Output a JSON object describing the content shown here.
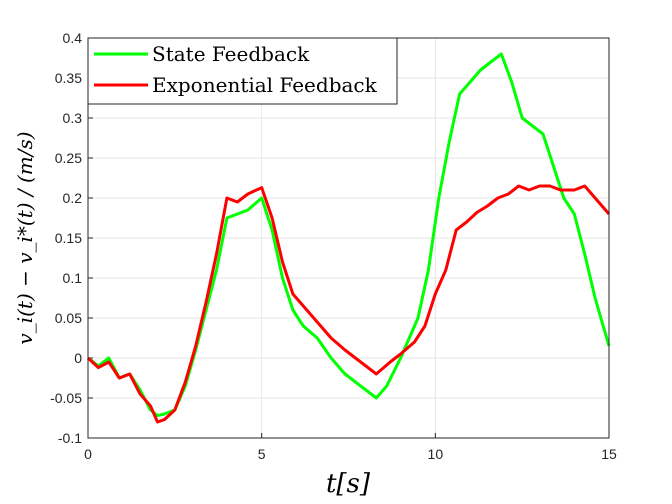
{
  "chart_data": {
    "type": "line",
    "xlabel": "t[s]",
    "ylabel": "v_i(t) − v_i*(t) / (m/s)",
    "xlim": [
      0,
      15
    ],
    "ylim": [
      -0.1,
      0.4
    ],
    "xticks": [
      "0",
      "5",
      "10",
      "15"
    ],
    "yticks": [
      "-0.1",
      "-0.05",
      "0",
      "0.05",
      "0.1",
      "0.15",
      "0.2",
      "0.25",
      "0.3",
      "0.35",
      "0.4"
    ],
    "grid": true,
    "legend_position": "top-left",
    "series": [
      {
        "name": "State Feedback",
        "color": "#00ff00",
        "points": [
          [
            0,
            0
          ],
          [
            0.3,
            -0.01
          ],
          [
            0.6,
            0.0
          ],
          [
            0.9,
            -0.025
          ],
          [
            1.2,
            -0.02
          ],
          [
            1.5,
            -0.04
          ],
          [
            1.8,
            -0.065
          ],
          [
            2.0,
            -0.072
          ],
          [
            2.2,
            -0.07
          ],
          [
            2.5,
            -0.065
          ],
          [
            2.8,
            -0.035
          ],
          [
            3.1,
            0.01
          ],
          [
            3.4,
            0.06
          ],
          [
            3.7,
            0.11
          ],
          [
            4.0,
            0.175
          ],
          [
            4.3,
            0.18
          ],
          [
            4.6,
            0.185
          ],
          [
            5.0,
            0.2
          ],
          [
            5.3,
            0.16
          ],
          [
            5.6,
            0.1
          ],
          [
            5.9,
            0.06
          ],
          [
            6.2,
            0.04
          ],
          [
            6.6,
            0.025
          ],
          [
            7.0,
            0.0
          ],
          [
            7.4,
            -0.02
          ],
          [
            7.7,
            -0.03
          ],
          [
            8.0,
            -0.04
          ],
          [
            8.3,
            -0.05
          ],
          [
            8.6,
            -0.035
          ],
          [
            9.0,
            0.0
          ],
          [
            9.5,
            0.05
          ],
          [
            9.8,
            0.11
          ],
          [
            10.1,
            0.2
          ],
          [
            10.4,
            0.27
          ],
          [
            10.7,
            0.33
          ],
          [
            11.0,
            0.345
          ],
          [
            11.3,
            0.36
          ],
          [
            11.6,
            0.37
          ],
          [
            11.9,
            0.38
          ],
          [
            12.2,
            0.345
          ],
          [
            12.5,
            0.3
          ],
          [
            12.8,
            0.29
          ],
          [
            13.1,
            0.28
          ],
          [
            13.4,
            0.24
          ],
          [
            13.7,
            0.2
          ],
          [
            14.0,
            0.18
          ],
          [
            14.3,
            0.13
          ],
          [
            14.6,
            0.075
          ],
          [
            15.0,
            0.015
          ]
        ]
      },
      {
        "name": "Exponential Feedback",
        "color": "#ff0000",
        "points": [
          [
            0,
            0
          ],
          [
            0.3,
            -0.012
          ],
          [
            0.6,
            -0.005
          ],
          [
            0.9,
            -0.025
          ],
          [
            1.2,
            -0.02
          ],
          [
            1.5,
            -0.045
          ],
          [
            1.8,
            -0.06
          ],
          [
            2.0,
            -0.08
          ],
          [
            2.2,
            -0.077
          ],
          [
            2.5,
            -0.065
          ],
          [
            2.8,
            -0.03
          ],
          [
            3.1,
            0.015
          ],
          [
            3.4,
            0.07
          ],
          [
            3.7,
            0.13
          ],
          [
            4.0,
            0.2
          ],
          [
            4.3,
            0.195
          ],
          [
            4.6,
            0.205
          ],
          [
            5.0,
            0.213
          ],
          [
            5.3,
            0.175
          ],
          [
            5.6,
            0.12
          ],
          [
            5.9,
            0.08
          ],
          [
            6.2,
            0.065
          ],
          [
            6.6,
            0.045
          ],
          [
            7.0,
            0.025
          ],
          [
            7.4,
            0.01
          ],
          [
            7.7,
            0.0
          ],
          [
            8.0,
            -0.01
          ],
          [
            8.3,
            -0.02
          ],
          [
            8.7,
            -0.005
          ],
          [
            9.0,
            0.005
          ],
          [
            9.4,
            0.02
          ],
          [
            9.7,
            0.04
          ],
          [
            10.0,
            0.08
          ],
          [
            10.3,
            0.11
          ],
          [
            10.6,
            0.16
          ],
          [
            10.9,
            0.17
          ],
          [
            11.2,
            0.182
          ],
          [
            11.5,
            0.19
          ],
          [
            11.8,
            0.2
          ],
          [
            12.1,
            0.205
          ],
          [
            12.4,
            0.215
          ],
          [
            12.7,
            0.21
          ],
          [
            13.0,
            0.215
          ],
          [
            13.3,
            0.215
          ],
          [
            13.6,
            0.21
          ],
          [
            14.0,
            0.21
          ],
          [
            14.3,
            0.215
          ],
          [
            14.6,
            0.2
          ],
          [
            15.0,
            0.18
          ]
        ]
      }
    ]
  }
}
